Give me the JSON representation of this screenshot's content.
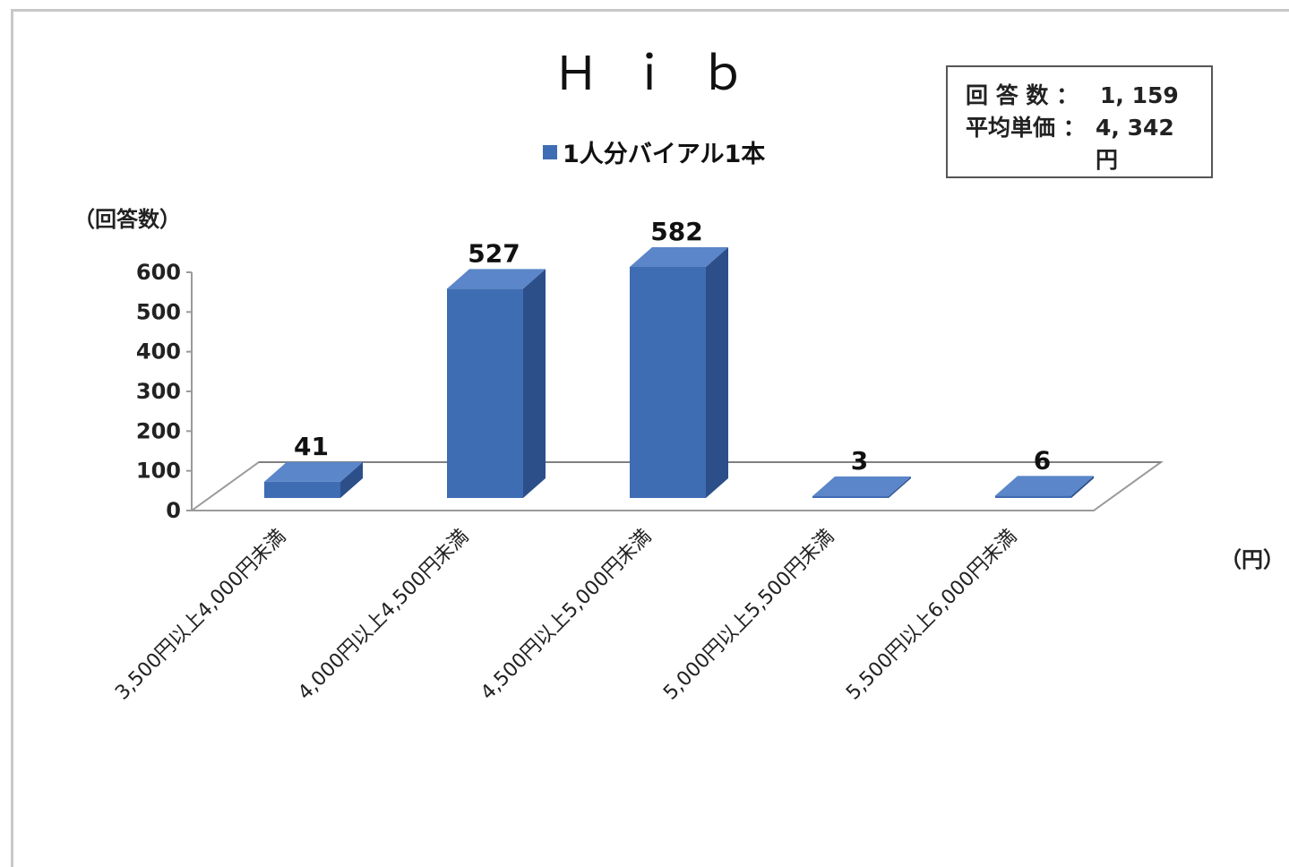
{
  "chart_data": {
    "type": "bar",
    "title": "Ｈｉｂ",
    "series": [
      {
        "name": "1人分バイアル1本",
        "values": [
          41,
          527,
          582,
          3,
          6
        ]
      }
    ],
    "categories": [
      "3,500円以上4,000円未満",
      "4,000円以上4,500円未満",
      "4,500円以上5,000円未満",
      "5,000円以上5,500円未満",
      "5,500円以上6,000円未満"
    ],
    "ylabel": "（回答数）",
    "xlabel": "（円）",
    "yticks": [
      0,
      100,
      200,
      300,
      400,
      500,
      600
    ],
    "ylim": [
      0,
      600
    ],
    "legend_position": "top-center",
    "grid": false,
    "bar_color": "#3f6db3"
  },
  "info_box": {
    "responses_label": "回 答 数 ：",
    "responses_value": "1, 159",
    "avg_price_label": "平均単価 ：",
    "avg_price_value": "4, 342円"
  }
}
